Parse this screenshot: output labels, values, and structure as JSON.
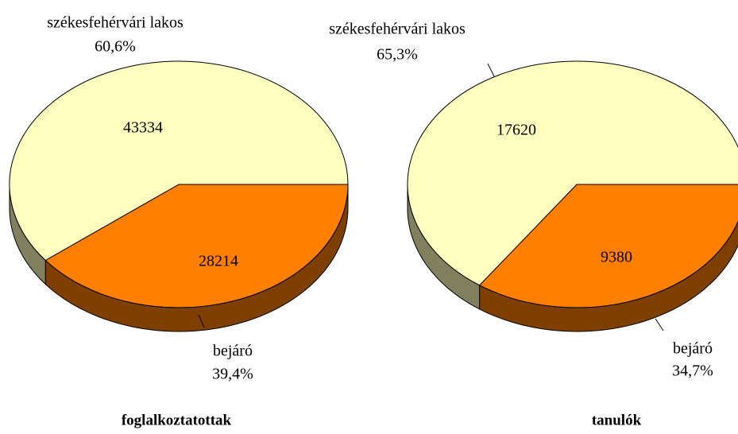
{
  "chart_data": [
    {
      "type": "pie",
      "title": "foglalkoztatottak",
      "categories": [
        "székesfehérvári lakos",
        "bejáró"
      ],
      "values": [
        43334,
        28214
      ],
      "shares": [
        60.6,
        39.4
      ],
      "share_labels": [
        "60,6%",
        "39,4%"
      ],
      "colors": [
        "#ffffc0",
        "#ff8000"
      ],
      "side_colors": [
        "#80805f",
        "#7f3f00"
      ]
    },
    {
      "type": "pie",
      "title": "tanulók",
      "categories": [
        "székesfehérvári lakos",
        "bejáró"
      ],
      "values": [
        17620,
        9380
      ],
      "shares": [
        65.3,
        34.7
      ],
      "share_labels": [
        "65,3%",
        "34,7%"
      ],
      "colors": [
        "#ffffc0",
        "#ff8000"
      ],
      "side_colors": [
        "#80805f",
        "#7f3f00"
      ]
    }
  ]
}
